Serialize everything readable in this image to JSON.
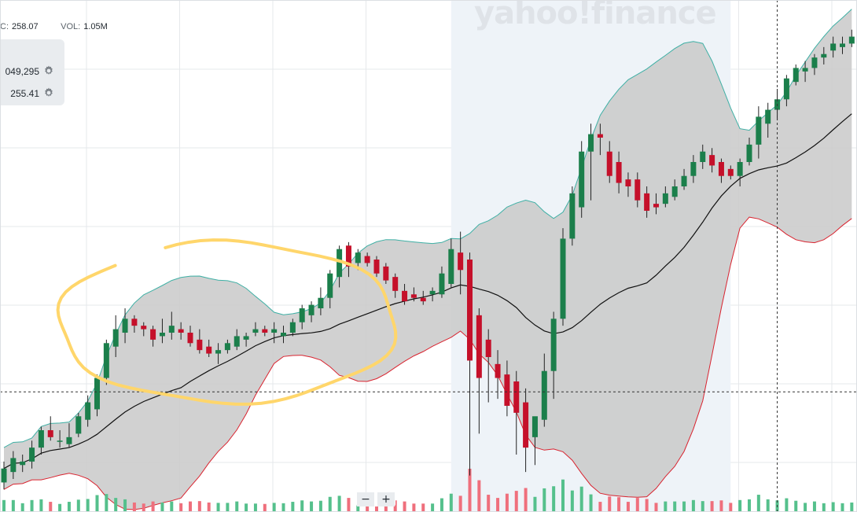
{
  "header": {
    "close_key": "C:",
    "close_value": "258.07",
    "volume_key": "VOL:",
    "volume_value": "1.05M"
  },
  "legend": {
    "rows": [
      {
        "value": "049,295",
        "icon": "gear-icon"
      },
      {
        "value": "255.41",
        "icon": "gear-icon"
      }
    ]
  },
  "watermark": "yahoo!finance",
  "zoom": {
    "minus": "−",
    "plus": "+"
  },
  "colors": {
    "up": "#1b7f4b",
    "down": "#c5102a",
    "band_fill": "#c9c9c9",
    "upper_band": "#3fb0a5",
    "lower_band": "#d9232f",
    "middle_band": "#111111",
    "highlight": "#eef3f8",
    "annotation": "#ffd66b",
    "vol_up": "#55c08c",
    "vol_down": "#ef6f7c"
  },
  "chart_data": {
    "type": "candlestick",
    "price_range": [
      180,
      310
    ],
    "highlighted_range": [
      48,
      78
    ],
    "crosshair": {
      "index": 83,
      "price": 272
    },
    "annotation": "hand-drawn circle around consolidation",
    "candles": [
      {
        "o": 246,
        "h": 252,
        "l": 244,
        "c": 250
      },
      {
        "o": 249,
        "h": 255,
        "l": 247,
        "c": 253
      },
      {
        "o": 251,
        "h": 254,
        "l": 249,
        "c": 252
      },
      {
        "o": 252,
        "h": 258,
        "l": 250,
        "c": 256
      },
      {
        "o": 256,
        "h": 262,
        "l": 254,
        "c": 261
      },
      {
        "o": 261,
        "h": 265,
        "l": 258,
        "c": 259
      },
      {
        "o": 258,
        "h": 261,
        "l": 256,
        "c": 258
      },
      {
        "o": 257,
        "h": 263,
        "l": 256,
        "c": 259
      },
      {
        "o": 260,
        "h": 266,
        "l": 259,
        "c": 265
      },
      {
        "o": 264,
        "h": 271,
        "l": 262,
        "c": 269
      },
      {
        "o": 267,
        "h": 277,
        "l": 265,
        "c": 276
      },
      {
        "o": 276,
        "h": 287,
        "l": 274,
        "c": 286
      },
      {
        "o": 285,
        "h": 294,
        "l": 282,
        "c": 290
      },
      {
        "o": 289,
        "h": 296,
        "l": 286,
        "c": 293
      },
      {
        "o": 293,
        "h": 294,
        "l": 289,
        "c": 291
      },
      {
        "o": 291,
        "h": 292,
        "l": 288,
        "c": 290
      },
      {
        "o": 290,
        "h": 291,
        "l": 285,
        "c": 287
      },
      {
        "o": 288,
        "h": 293,
        "l": 286,
        "c": 289
      },
      {
        "o": 289,
        "h": 295,
        "l": 287,
        "c": 291
      },
      {
        "o": 290,
        "h": 292,
        "l": 287,
        "c": 289
      },
      {
        "o": 289,
        "h": 291,
        "l": 285,
        "c": 286
      },
      {
        "o": 287,
        "h": 290,
        "l": 283,
        "c": 284
      },
      {
        "o": 285,
        "h": 287,
        "l": 282,
        "c": 283
      },
      {
        "o": 283,
        "h": 286,
        "l": 280,
        "c": 284
      },
      {
        "o": 284,
        "h": 287,
        "l": 283,
        "c": 286
      },
      {
        "o": 285,
        "h": 290,
        "l": 284,
        "c": 288
      },
      {
        "o": 287,
        "h": 289,
        "l": 285,
        "c": 288
      },
      {
        "o": 289,
        "h": 292,
        "l": 288,
        "c": 290
      },
      {
        "o": 290,
        "h": 291,
        "l": 288,
        "c": 289
      },
      {
        "o": 289,
        "h": 292,
        "l": 286,
        "c": 290
      },
      {
        "o": 288,
        "h": 291,
        "l": 286,
        "c": 289
      },
      {
        "o": 289,
        "h": 293,
        "l": 288,
        "c": 292
      },
      {
        "o": 292,
        "h": 297,
        "l": 290,
        "c": 296
      },
      {
        "o": 294,
        "h": 298,
        "l": 292,
        "c": 297
      },
      {
        "o": 296,
        "h": 302,
        "l": 294,
        "c": 299
      },
      {
        "o": 299,
        "h": 307,
        "l": 296,
        "c": 306
      },
      {
        "o": 305,
        "h": 314,
        "l": 302,
        "c": 313
      },
      {
        "o": 314,
        "h": 315,
        "l": 305,
        "c": 308
      },
      {
        "o": 309,
        "h": 313,
        "l": 307,
        "c": 312
      },
      {
        "o": 311,
        "h": 312,
        "l": 308,
        "c": 309
      },
      {
        "o": 310,
        "h": 311,
        "l": 305,
        "c": 306
      },
      {
        "o": 308,
        "h": 309,
        "l": 303,
        "c": 304
      },
      {
        "o": 305,
        "h": 306,
        "l": 299,
        "c": 301
      },
      {
        "o": 301,
        "h": 303,
        "l": 297,
        "c": 298
      },
      {
        "o": 300,
        "h": 302,
        "l": 298,
        "c": 299
      },
      {
        "o": 299,
        "h": 301,
        "l": 297,
        "c": 298
      },
      {
        "o": 300,
        "h": 302,
        "l": 298,
        "c": 301
      },
      {
        "o": 300,
        "h": 308,
        "l": 299,
        "c": 306
      },
      {
        "o": 303,
        "h": 316,
        "l": 302,
        "c": 313
      },
      {
        "o": 312,
        "h": 318,
        "l": 300,
        "c": 307
      },
      {
        "o": 310,
        "h": 312,
        "l": 248,
        "c": 281
      },
      {
        "o": 294,
        "h": 296,
        "l": 260,
        "c": 276
      },
      {
        "o": 287,
        "h": 290,
        "l": 269,
        "c": 282
      },
      {
        "o": 280,
        "h": 284,
        "l": 270,
        "c": 276
      },
      {
        "o": 277,
        "h": 281,
        "l": 265,
        "c": 268
      },
      {
        "o": 275,
        "h": 278,
        "l": 254,
        "c": 266
      },
      {
        "o": 269,
        "h": 273,
        "l": 249,
        "c": 256
      },
      {
        "o": 259,
        "h": 264,
        "l": 251,
        "c": 265
      },
      {
        "o": 264,
        "h": 283,
        "l": 262,
        "c": 278
      },
      {
        "o": 278,
        "h": 295,
        "l": 270,
        "c": 293
      },
      {
        "o": 293,
        "h": 319,
        "l": 291,
        "c": 316
      },
      {
        "o": 316,
        "h": 331,
        "l": 314,
        "c": 329
      },
      {
        "o": 325,
        "h": 344,
        "l": 322,
        "c": 341
      },
      {
        "o": 341,
        "h": 349,
        "l": 327,
        "c": 346
      },
      {
        "o": 346,
        "h": 349,
        "l": 340,
        "c": 345
      },
      {
        "o": 341,
        "h": 344,
        "l": 332,
        "c": 334
      },
      {
        "o": 338,
        "h": 341,
        "l": 329,
        "c": 332
      },
      {
        "o": 333,
        "h": 335,
        "l": 328,
        "c": 331
      },
      {
        "o": 333,
        "h": 335,
        "l": 325,
        "c": 327
      },
      {
        "o": 329,
        "h": 331,
        "l": 322,
        "c": 324
      },
      {
        "o": 326,
        "h": 329,
        "l": 323,
        "c": 325
      },
      {
        "o": 326,
        "h": 331,
        "l": 325,
        "c": 329
      },
      {
        "o": 328,
        "h": 333,
        "l": 327,
        "c": 331
      },
      {
        "o": 331,
        "h": 336,
        "l": 330,
        "c": 334
      },
      {
        "o": 334,
        "h": 340,
        "l": 332,
        "c": 338
      },
      {
        "o": 338,
        "h": 343,
        "l": 336,
        "c": 341
      },
      {
        "o": 340,
        "h": 342,
        "l": 335,
        "c": 337
      },
      {
        "o": 338,
        "h": 339,
        "l": 332,
        "c": 334
      },
      {
        "o": 336,
        "h": 337,
        "l": 333,
        "c": 334
      },
      {
        "o": 334,
        "h": 339,
        "l": 331,
        "c": 338
      },
      {
        "o": 338,
        "h": 345,
        "l": 337,
        "c": 343
      },
      {
        "o": 343,
        "h": 354,
        "l": 339,
        "c": 351
      },
      {
        "o": 349,
        "h": 355,
        "l": 345,
        "c": 353
      },
      {
        "o": 353,
        "h": 359,
        "l": 350,
        "c": 356
      },
      {
        "o": 356,
        "h": 363,
        "l": 354,
        "c": 362
      },
      {
        "o": 361,
        "h": 366,
        "l": 360,
        "c": 365
      },
      {
        "o": 364,
        "h": 367,
        "l": 361,
        "c": 365
      },
      {
        "o": 365,
        "h": 369,
        "l": 363,
        "c": 368
      },
      {
        "o": 368,
        "h": 371,
        "l": 366,
        "c": 369
      },
      {
        "o": 370,
        "h": 374,
        "l": 368,
        "c": 372
      },
      {
        "o": 371,
        "h": 374,
        "l": 369,
        "c": 372
      },
      {
        "o": 372,
        "h": 376,
        "l": 371,
        "c": 374
      }
    ],
    "volumes_up": [
      1,
      1,
      1,
      1,
      1,
      1,
      1,
      1,
      1,
      1
    ]
  }
}
